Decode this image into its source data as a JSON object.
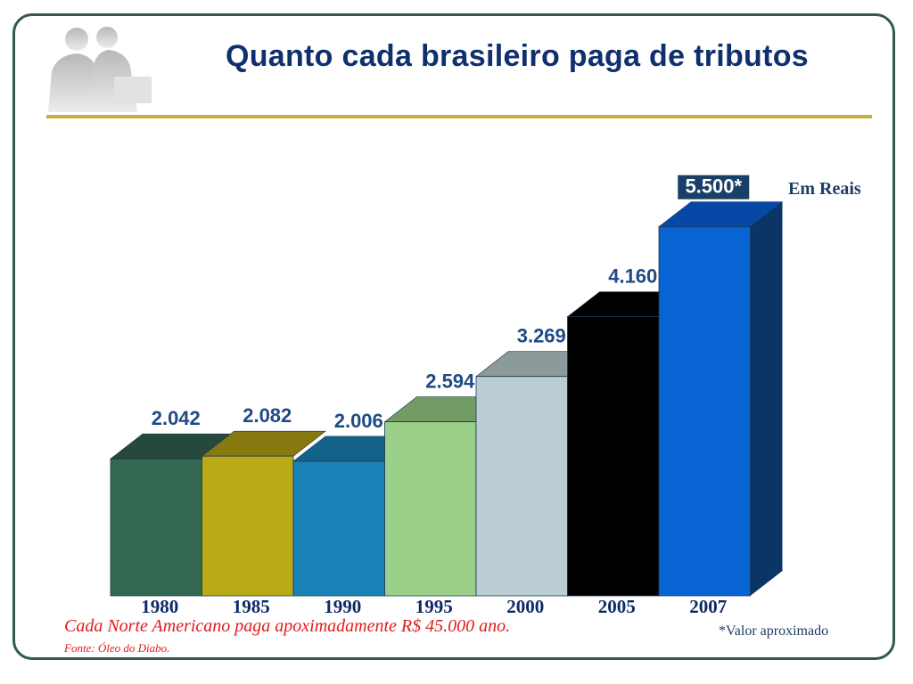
{
  "slide": {
    "title": "Quanto cada brasileiro paga de tributos",
    "unit_label": "Em Reais",
    "note": "Cada Norte Americano paga apoximadamente R$ 45.000 ano.",
    "source": "Fonte: Óleo do Diabo.",
    "approx_note": "*Valor aproximado"
  },
  "chart_data": {
    "type": "bar",
    "title": "Quanto cada brasileiro paga de tributos",
    "xlabel": "",
    "ylabel": "",
    "categories": [
      "1980",
      "1985",
      "1990",
      "1995",
      "2000",
      "2005",
      "2007"
    ],
    "values": [
      2042,
      2082,
      2006,
      2594,
      3269,
      4160,
      5500
    ],
    "value_labels": [
      "2.042",
      "2.082",
      "2.006",
      "2.594",
      "3.269",
      "4.160",
      "5.500*"
    ],
    "ylim": [
      0,
      6000
    ],
    "grid": false,
    "legend": "none",
    "colors": {
      "front": [
        "#336852",
        "#b9aa16",
        "#1983b8",
        "#9bd08a",
        "#b9cdd2",
        "#000000",
        "#0764d2"
      ],
      "top": [
        "#25493b",
        "#85790f",
        "#12628a",
        "#739c65",
        "#8c9a9c",
        "#000000",
        "#0548a6"
      ],
      "side": "#0a3566",
      "label": "#1f4a85",
      "label_last_bg": "#1a3f66",
      "label_last_fg": "#ffffff"
    }
  }
}
